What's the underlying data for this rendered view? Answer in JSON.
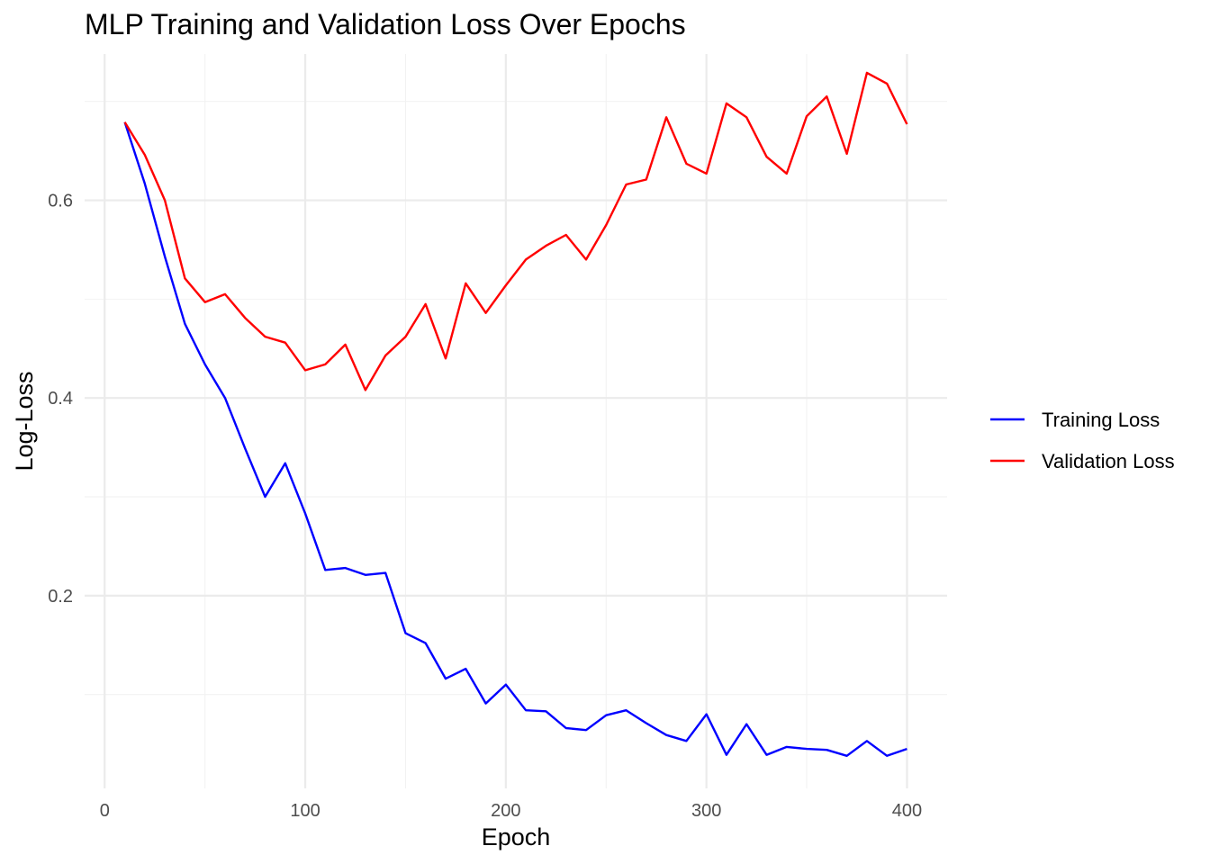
{
  "chart_data": {
    "type": "line",
    "title": "MLP Training and Validation Loss Over Epochs",
    "xlabel": "Epoch",
    "ylabel": "Log-Loss",
    "xlim": [
      -10,
      420
    ],
    "ylim": [
      0.005,
      0.748
    ],
    "x_ticks": [
      0,
      100,
      200,
      300,
      400
    ],
    "x_tick_labels": [
      "0",
      "100",
      "200",
      "300",
      "400"
    ],
    "y_ticks": [
      0.2,
      0.4,
      0.6
    ],
    "y_tick_labels": [
      "0.2",
      "0.4",
      "0.6"
    ],
    "grid": true,
    "legend_position": "right",
    "x": [
      10,
      20,
      30,
      40,
      50,
      60,
      70,
      80,
      90,
      100,
      110,
      120,
      130,
      140,
      150,
      160,
      170,
      180,
      190,
      200,
      210,
      220,
      230,
      240,
      250,
      260,
      270,
      280,
      290,
      300,
      310,
      320,
      330,
      340,
      350,
      360,
      370,
      380,
      390,
      400
    ],
    "series": [
      {
        "name": "Training Loss",
        "color": "#0000ff",
        "values": [
          0.679,
          0.617,
          0.543,
          0.475,
          0.434,
          0.4,
          0.349,
          0.3,
          0.334,
          0.283,
          0.226,
          0.228,
          0.221,
          0.223,
          0.162,
          0.152,
          0.116,
          0.126,
          0.091,
          0.11,
          0.084,
          0.083,
          0.066,
          0.064,
          0.079,
          0.084,
          0.071,
          0.059,
          0.053,
          0.08,
          0.039,
          0.07,
          0.039,
          0.047,
          0.045,
          0.044,
          0.038,
          0.053,
          0.038,
          0.045
        ]
      },
      {
        "name": "Validation Loss",
        "color": "#ff0000",
        "values": [
          0.679,
          0.646,
          0.6,
          0.521,
          0.497,
          0.505,
          0.481,
          0.462,
          0.456,
          0.428,
          0.434,
          0.454,
          0.408,
          0.443,
          0.462,
          0.495,
          0.44,
          0.516,
          0.486,
          0.514,
          0.54,
          0.554,
          0.565,
          0.54,
          0.575,
          0.616,
          0.621,
          0.684,
          0.637,
          0.627,
          0.698,
          0.684,
          0.644,
          0.627,
          0.685,
          0.705,
          0.647,
          0.729,
          0.718,
          0.677
        ]
      }
    ]
  }
}
